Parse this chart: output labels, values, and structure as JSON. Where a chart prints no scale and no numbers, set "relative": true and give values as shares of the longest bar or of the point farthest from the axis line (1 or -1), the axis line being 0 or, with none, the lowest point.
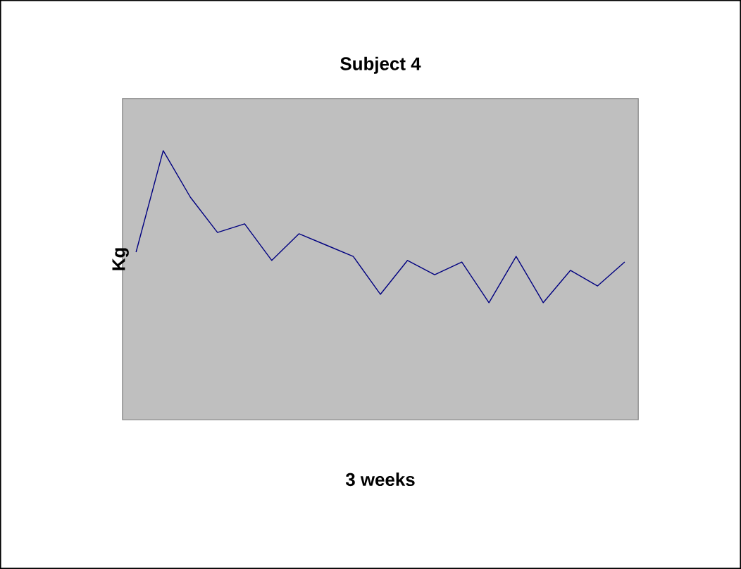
{
  "chart_data": {
    "type": "line",
    "title": "Subject 4",
    "xlabel": "3 weeks",
    "ylabel": "Kg",
    "relative": true,
    "color": "#000080",
    "categories": [
      null,
      null,
      null,
      null,
      null,
      null,
      null,
      null,
      null,
      null,
      null,
      null,
      null,
      null,
      null,
      null,
      null,
      null,
      null
    ],
    "values": [
      0.623,
      1,
      0.827,
      0.696,
      0.728,
      0.592,
      0.691,
      0.649,
      0.607,
      0.466,
      0.592,
      0.539,
      0.586,
      0.435,
      0.607,
      0.435,
      0.555,
      0.497,
      0.586
    ],
    "marker": "none",
    "line_style": "solid"
  }
}
